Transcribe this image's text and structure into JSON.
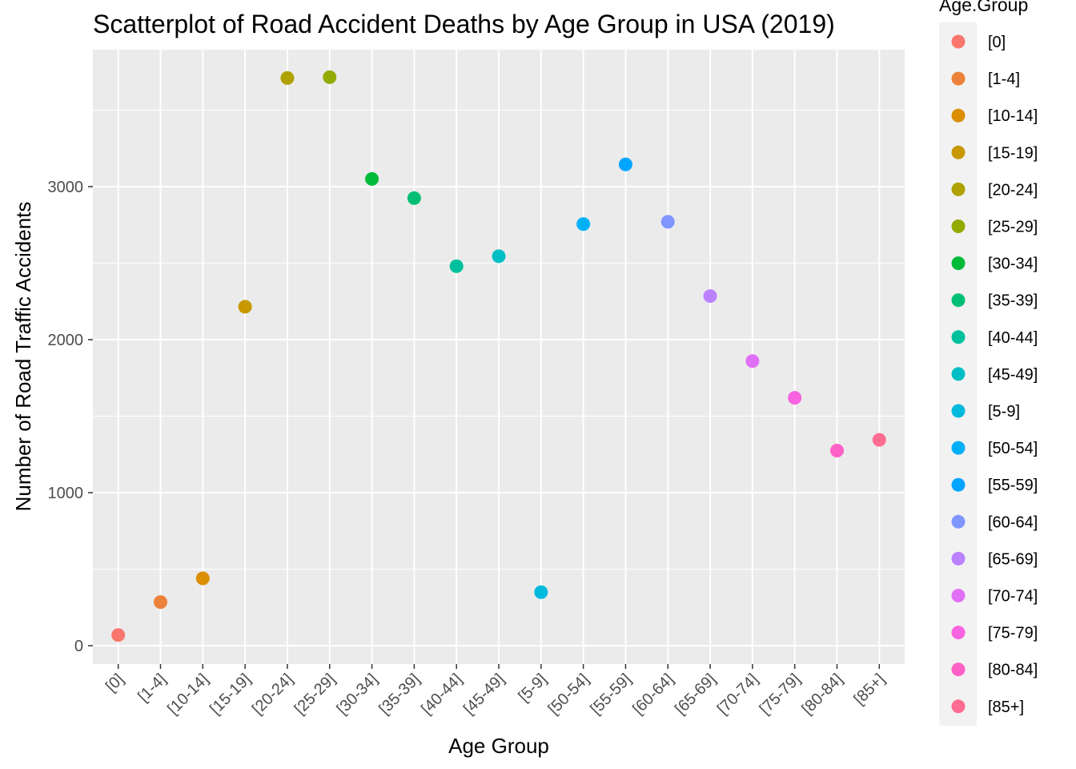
{
  "chart_data": {
    "type": "scatter",
    "title": "Scatterplot of Road Accident Deaths by Age Group in USA (2019)",
    "xlabel": "Age Group",
    "ylabel": "Number of Road Traffic Accidents",
    "categories": [
      "[0]",
      "[1-4]",
      "[10-14]",
      "[15-19]",
      "[20-24]",
      "[25-29]",
      "[30-34]",
      "[35-39]",
      "[40-44]",
      "[45-49]",
      "[5-9]",
      "[50-54]",
      "[55-59]",
      "[60-64]",
      "[65-69]",
      "[70-74]",
      "[75-79]",
      "[80-84]",
      "[85+]"
    ],
    "values": [
      70,
      285,
      440,
      2215,
      3710,
      3715,
      3050,
      2925,
      2480,
      2545,
      350,
      2755,
      3145,
      2770,
      2285,
      1860,
      1620,
      1275,
      1345
    ],
    "colors": [
      "#F8766D",
      "#EC8239",
      "#DB8E00",
      "#C79800",
      "#AFA100",
      "#93AA00",
      "#00BA38",
      "#00BF74",
      "#00C19C",
      "#00BFC4",
      "#00BADE",
      "#00B0F6",
      "#00A5FF",
      "#7F96FF",
      "#BC81FF",
      "#E270F7",
      "#F763E0",
      "#FF61C7",
      "#FF6C91"
    ],
    "y_ticks": [
      0,
      1000,
      2000,
      3000
    ],
    "ylim": [
      -120,
      3895
    ],
    "grid": true,
    "legend": {
      "title": "Age.Group",
      "position": "right"
    }
  }
}
